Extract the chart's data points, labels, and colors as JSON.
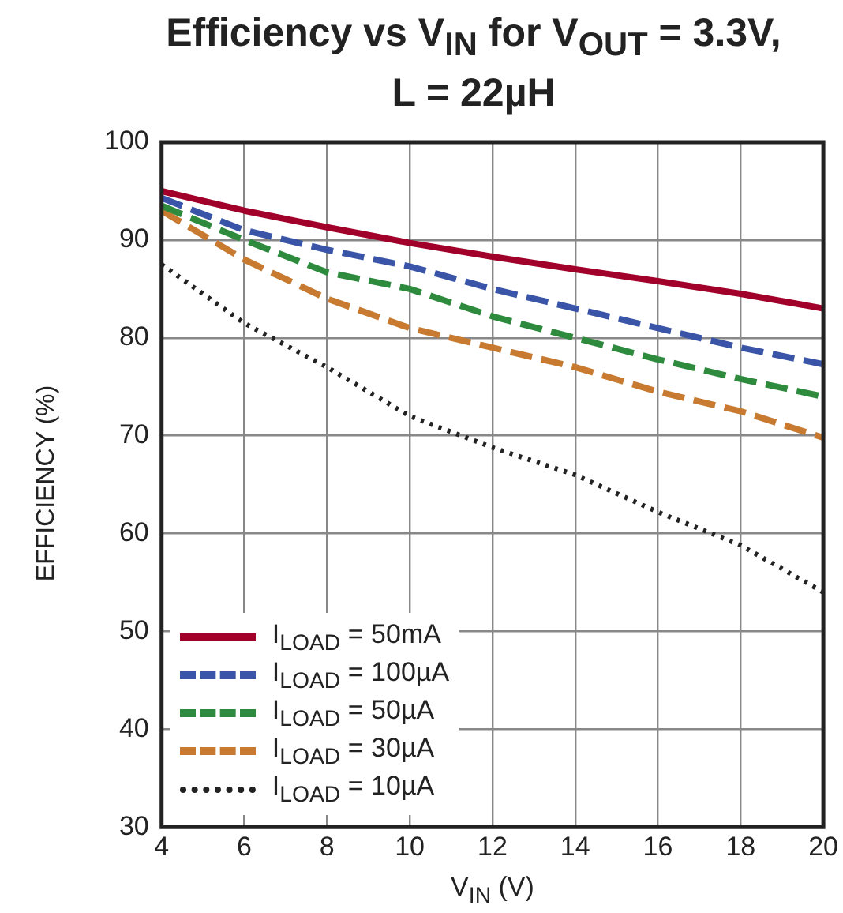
{
  "chart_data": {
    "type": "line",
    "title": "Efficiency vs V$_{IN}$ for V$_{OUT}$ = 3.3V, L = 22µH",
    "xlabel": "V$_{IN}$ (V)",
    "ylabel": "EFFICIENCY (%)",
    "x": [
      4,
      6,
      8,
      10,
      12,
      14,
      16,
      18,
      20
    ],
    "series": [
      {
        "name": "I$_{LOAD}$ = 50mA",
        "color": "#a0002a",
        "line_style": "solid",
        "values": [
          95,
          93,
          91.3,
          89.7,
          88.3,
          87,
          85.8,
          84.5,
          83
        ]
      },
      {
        "name": "I$_{LOAD}$ = 100µA",
        "color": "#3a55a8",
        "line_style": "dashed",
        "values": [
          94.3,
          91,
          89,
          87.3,
          85,
          83,
          81,
          79,
          77.3
        ]
      },
      {
        "name": "I$_{LOAD}$ = 50µA",
        "color": "#2e8b3e",
        "line_style": "dashed",
        "values": [
          93.5,
          90,
          86.7,
          85,
          82.2,
          80,
          77.8,
          75.8,
          74
        ]
      },
      {
        "name": "I$_{LOAD}$ = 30µA",
        "color": "#c77a30",
        "line_style": "dashed",
        "values": [
          93,
          88,
          84,
          81,
          79,
          77,
          74.5,
          72.5,
          69.8
        ]
      },
      {
        "name": "I$_{LOAD}$ = 10µA",
        "color": "#222222",
        "line_style": "dotted",
        "values": [
          87.5,
          81.5,
          77,
          72,
          68.8,
          66,
          62.2,
          58.8,
          54
        ]
      }
    ],
    "xlim": [
      4,
      20
    ],
    "xticks": [
      4,
      6,
      8,
      10,
      12,
      14,
      16,
      18,
      20
    ],
    "ylim": [
      30,
      100
    ],
    "yticks": [
      30,
      40,
      50,
      60,
      70,
      80,
      90,
      100
    ],
    "grid": true,
    "legend": "bottom left",
    "marker": "none"
  }
}
